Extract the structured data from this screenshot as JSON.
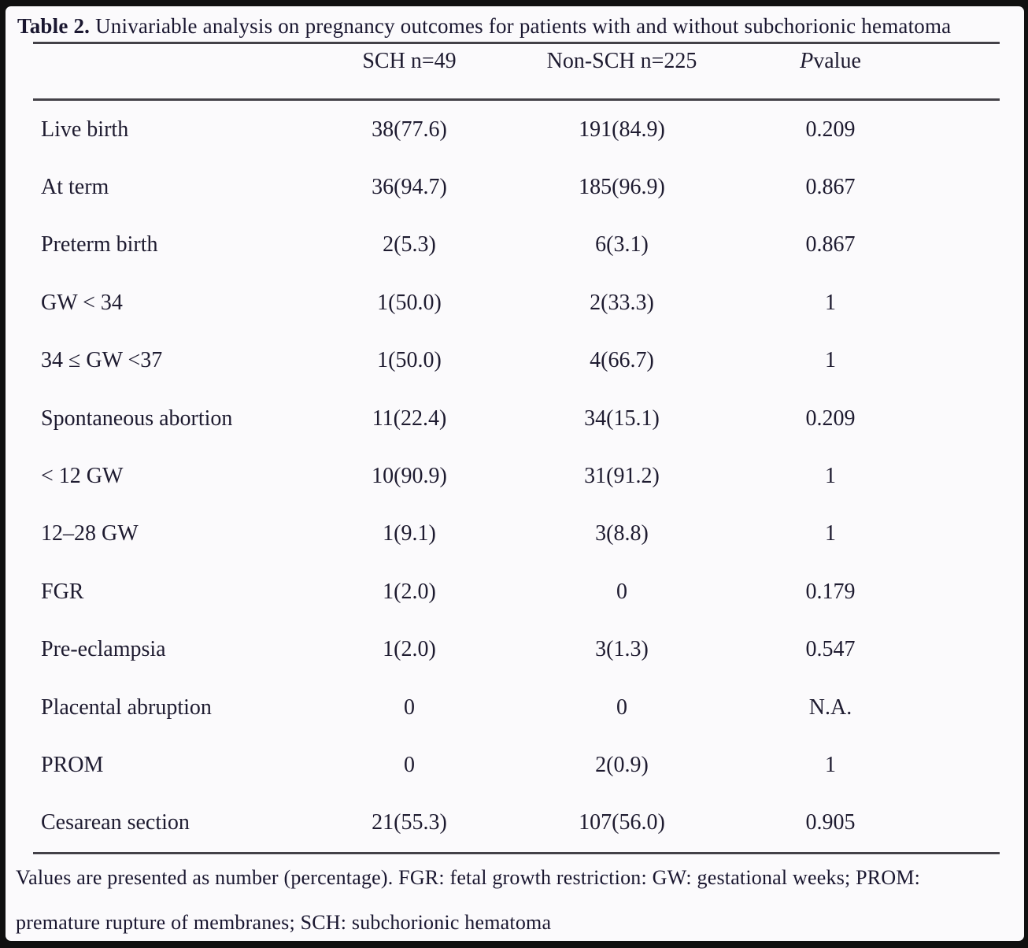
{
  "title": {
    "prefix": "Table 2.",
    "text": " Univariable analysis on pregnancy outcomes for patients with and without subchorionic hematoma"
  },
  "header": {
    "sch": "SCH n=49",
    "non_sch": "Non-SCH n=225",
    "p_italic": "P",
    "p_rest": " value"
  },
  "rows": [
    {
      "label": "Live birth",
      "sch": "38(77.6)",
      "non_sch": "191(84.9)",
      "p": "0.209"
    },
    {
      "label": "At term",
      "sch": "36(94.7)",
      "non_sch": "185(96.9)",
      "p": "0.867"
    },
    {
      "label": "Preterm birth",
      "sch": "2(5.3)",
      "non_sch": "6(3.1)",
      "p": "0.867"
    },
    {
      "label": "GW < 34",
      "sch": "1(50.0)",
      "non_sch": "2(33.3)",
      "p": "1"
    },
    {
      "label": "34 ≤ GW <37",
      "sch": "1(50.0)",
      "non_sch": "4(66.7)",
      "p": "1"
    },
    {
      "label": "Spontaneous abortion",
      "sch": "11(22.4)",
      "non_sch": "34(15.1)",
      "p": "0.209"
    },
    {
      "label": "< 12 GW",
      "sch": "10(90.9)",
      "non_sch": "31(91.2)",
      "p": "1"
    },
    {
      "label": "12–28 GW",
      "sch": "1(9.1)",
      "non_sch": "3(8.8)",
      "p": "1"
    },
    {
      "label": "FGR",
      "sch": "1(2.0)",
      "non_sch": "0",
      "p": "0.179"
    },
    {
      "label": "Pre-eclampsia",
      "sch": "1(2.0)",
      "non_sch": "3(1.3)",
      "p": "0.547"
    },
    {
      "label": "Placental abruption",
      "sch": "0",
      "non_sch": "0",
      "p": "N.A."
    },
    {
      "label": "PROM",
      "sch": "0",
      "non_sch": "2(0.9)",
      "p": "1"
    },
    {
      "label": "Cesarean section",
      "sch": "21(55.3)",
      "non_sch": "107(56.0)",
      "p": "0.905"
    }
  ],
  "footnote": {
    "line1": "Values are presented as number (percentage). FGR: fetal growth restriction: GW: gestational weeks; PROM:",
    "line2": "premature rupture of membranes; SCH: subchorionic hematoma"
  },
  "colors": {
    "text": "#1e1b30",
    "rule": "#434148",
    "page_background": "#fbfafc",
    "frame": "#101010"
  }
}
